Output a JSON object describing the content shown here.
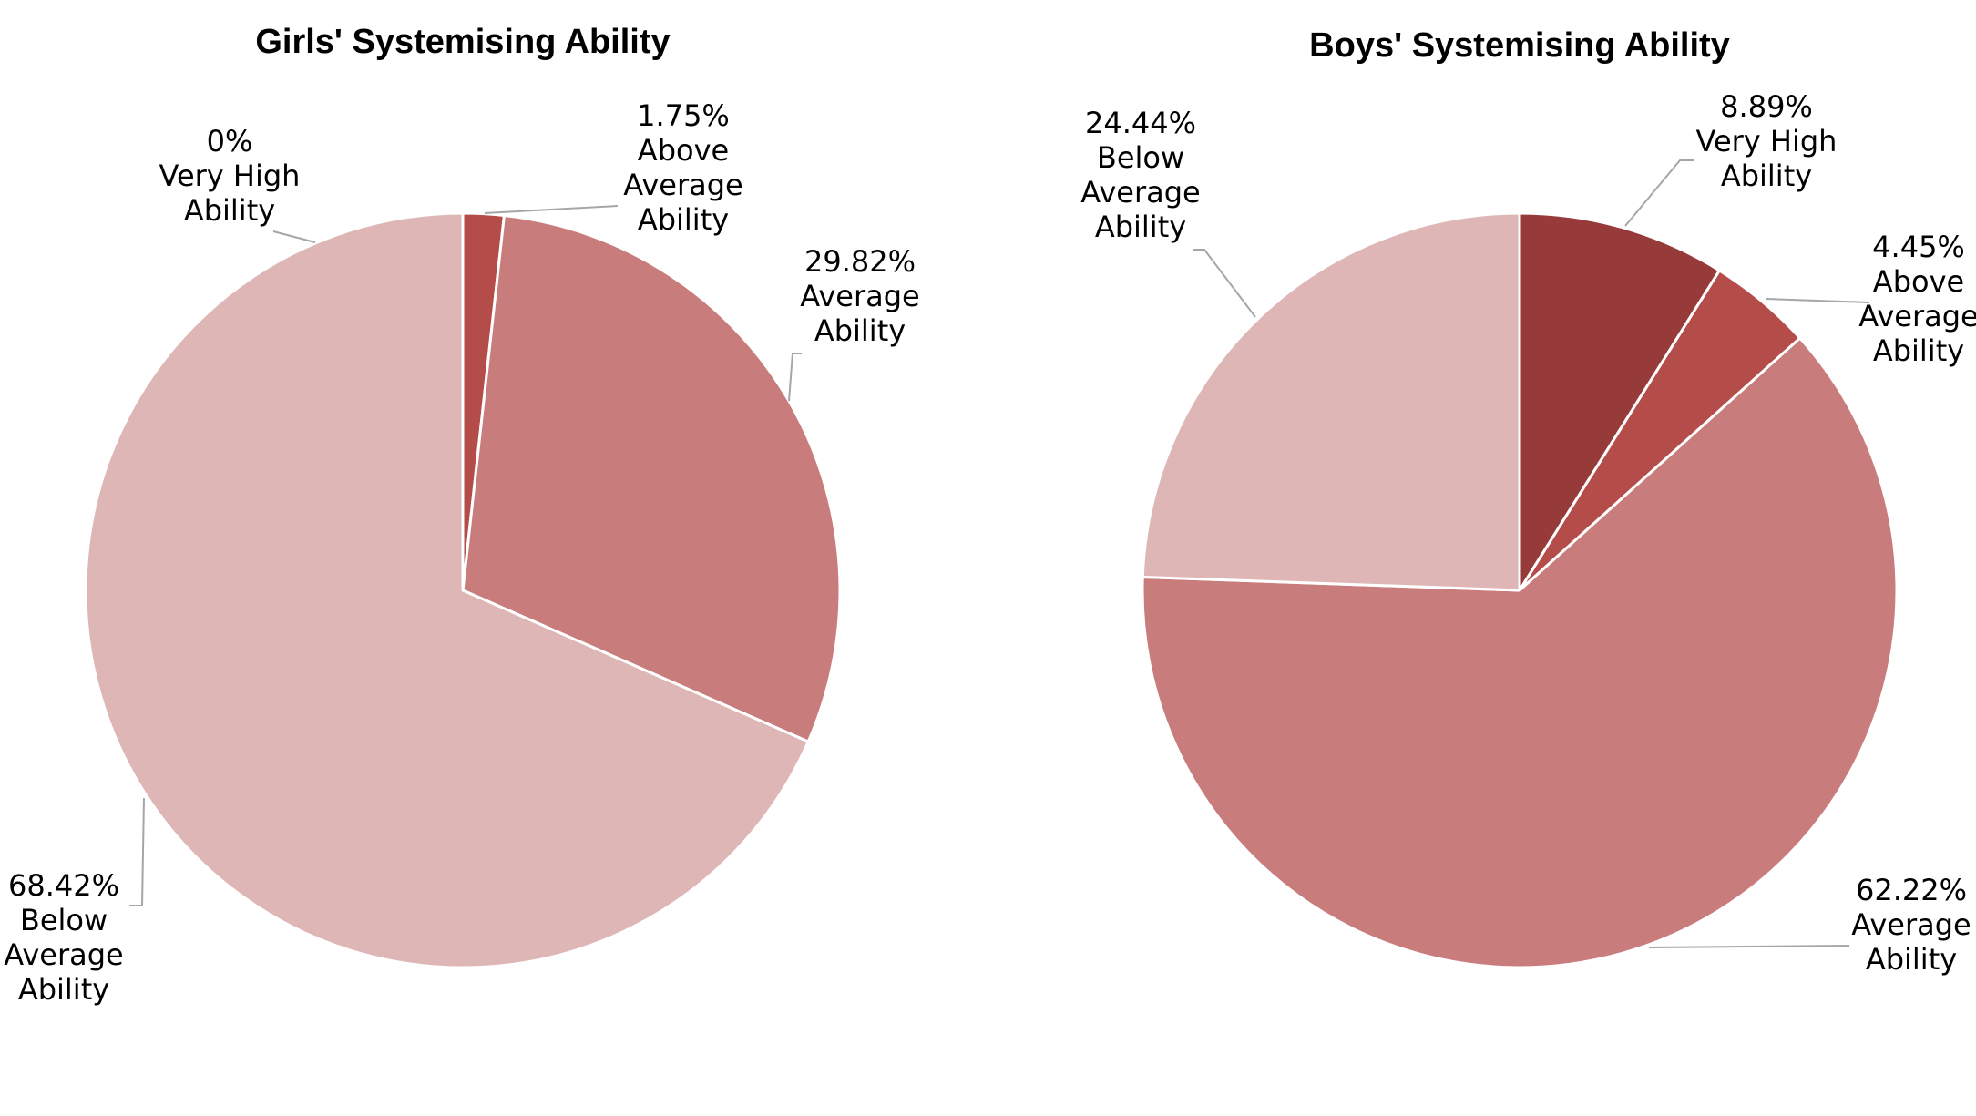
{
  "chart_data": [
    {
      "type": "pie",
      "title": "Girls' Systemising Ability",
      "slices": [
        {
          "label": "Very High Ability",
          "label_lines": [
            "Very High",
            "Ability"
          ],
          "value": 0,
          "value_text": "0%",
          "color": "#963a3a"
        },
        {
          "label": "Above Average Ability",
          "label_lines": [
            "Above",
            "Average",
            "Ability"
          ],
          "value": 1.75,
          "value_text": "1.75%",
          "color": "#b44c4a"
        },
        {
          "label": "Average Ability",
          "label_lines": [
            "Average",
            "Ability"
          ],
          "value": 29.82,
          "value_text": "29.82%",
          "color": "#c97c7c"
        },
        {
          "label": "Below Average Ability",
          "label_lines": [
            "Below",
            "Average",
            "Ability"
          ],
          "value": 68.42,
          "value_text": "68.42%",
          "color": "#dfb6b6"
        }
      ]
    },
    {
      "type": "pie",
      "title": "Boys' Systemising Ability",
      "slices": [
        {
          "label": "Very High Ability",
          "label_lines": [
            "Very High",
            "Ability"
          ],
          "value": 8.89,
          "value_text": "8.89%",
          "color": "#963a3a"
        },
        {
          "label": "Above Average Ability",
          "label_lines": [
            "Above",
            "Average",
            "Ability"
          ],
          "value": 4.45,
          "value_text": "4.45%",
          "color": "#b44c4a"
        },
        {
          "label": "Average Ability",
          "label_lines": [
            "Average",
            "Ability"
          ],
          "value": 62.22,
          "value_text": "62.22%",
          "color": "#c97c7c"
        },
        {
          "label": "Below Average Ability",
          "label_lines": [
            "Below",
            "Average",
            "Ability"
          ],
          "value": 24.44,
          "value_text": "24.44%",
          "color": "#dfb6b6"
        }
      ]
    }
  ]
}
